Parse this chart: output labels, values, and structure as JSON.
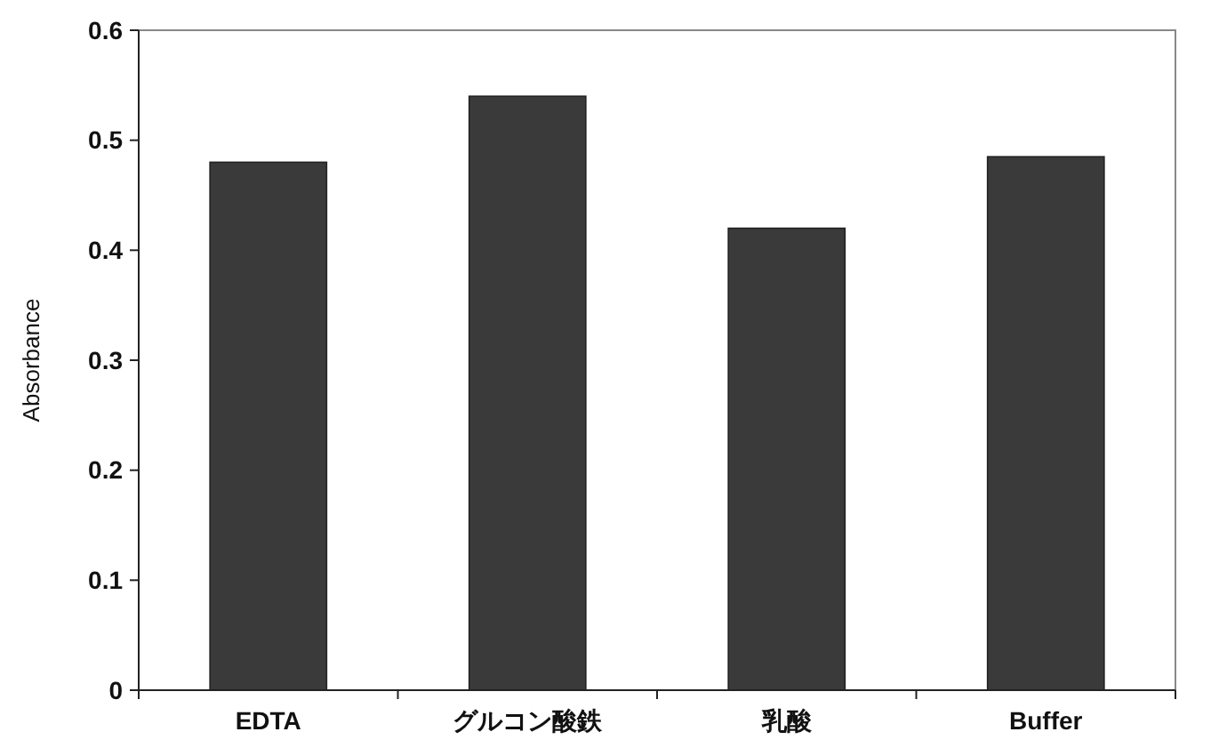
{
  "chart_data": {
    "type": "bar",
    "ylabel": "Absorbance",
    "categories": [
      "EDTA",
      "グルコン酸鉄",
      "乳酸",
      "Buffer"
    ],
    "values": [
      0.48,
      0.54,
      0.42,
      0.485
    ],
    "color": "#3a3a3a",
    "ylim": [
      0,
      0.6
    ],
    "yticks": [
      0,
      0.1,
      0.2,
      0.3,
      0.4,
      0.5,
      0.6
    ],
    "grid": false
  }
}
